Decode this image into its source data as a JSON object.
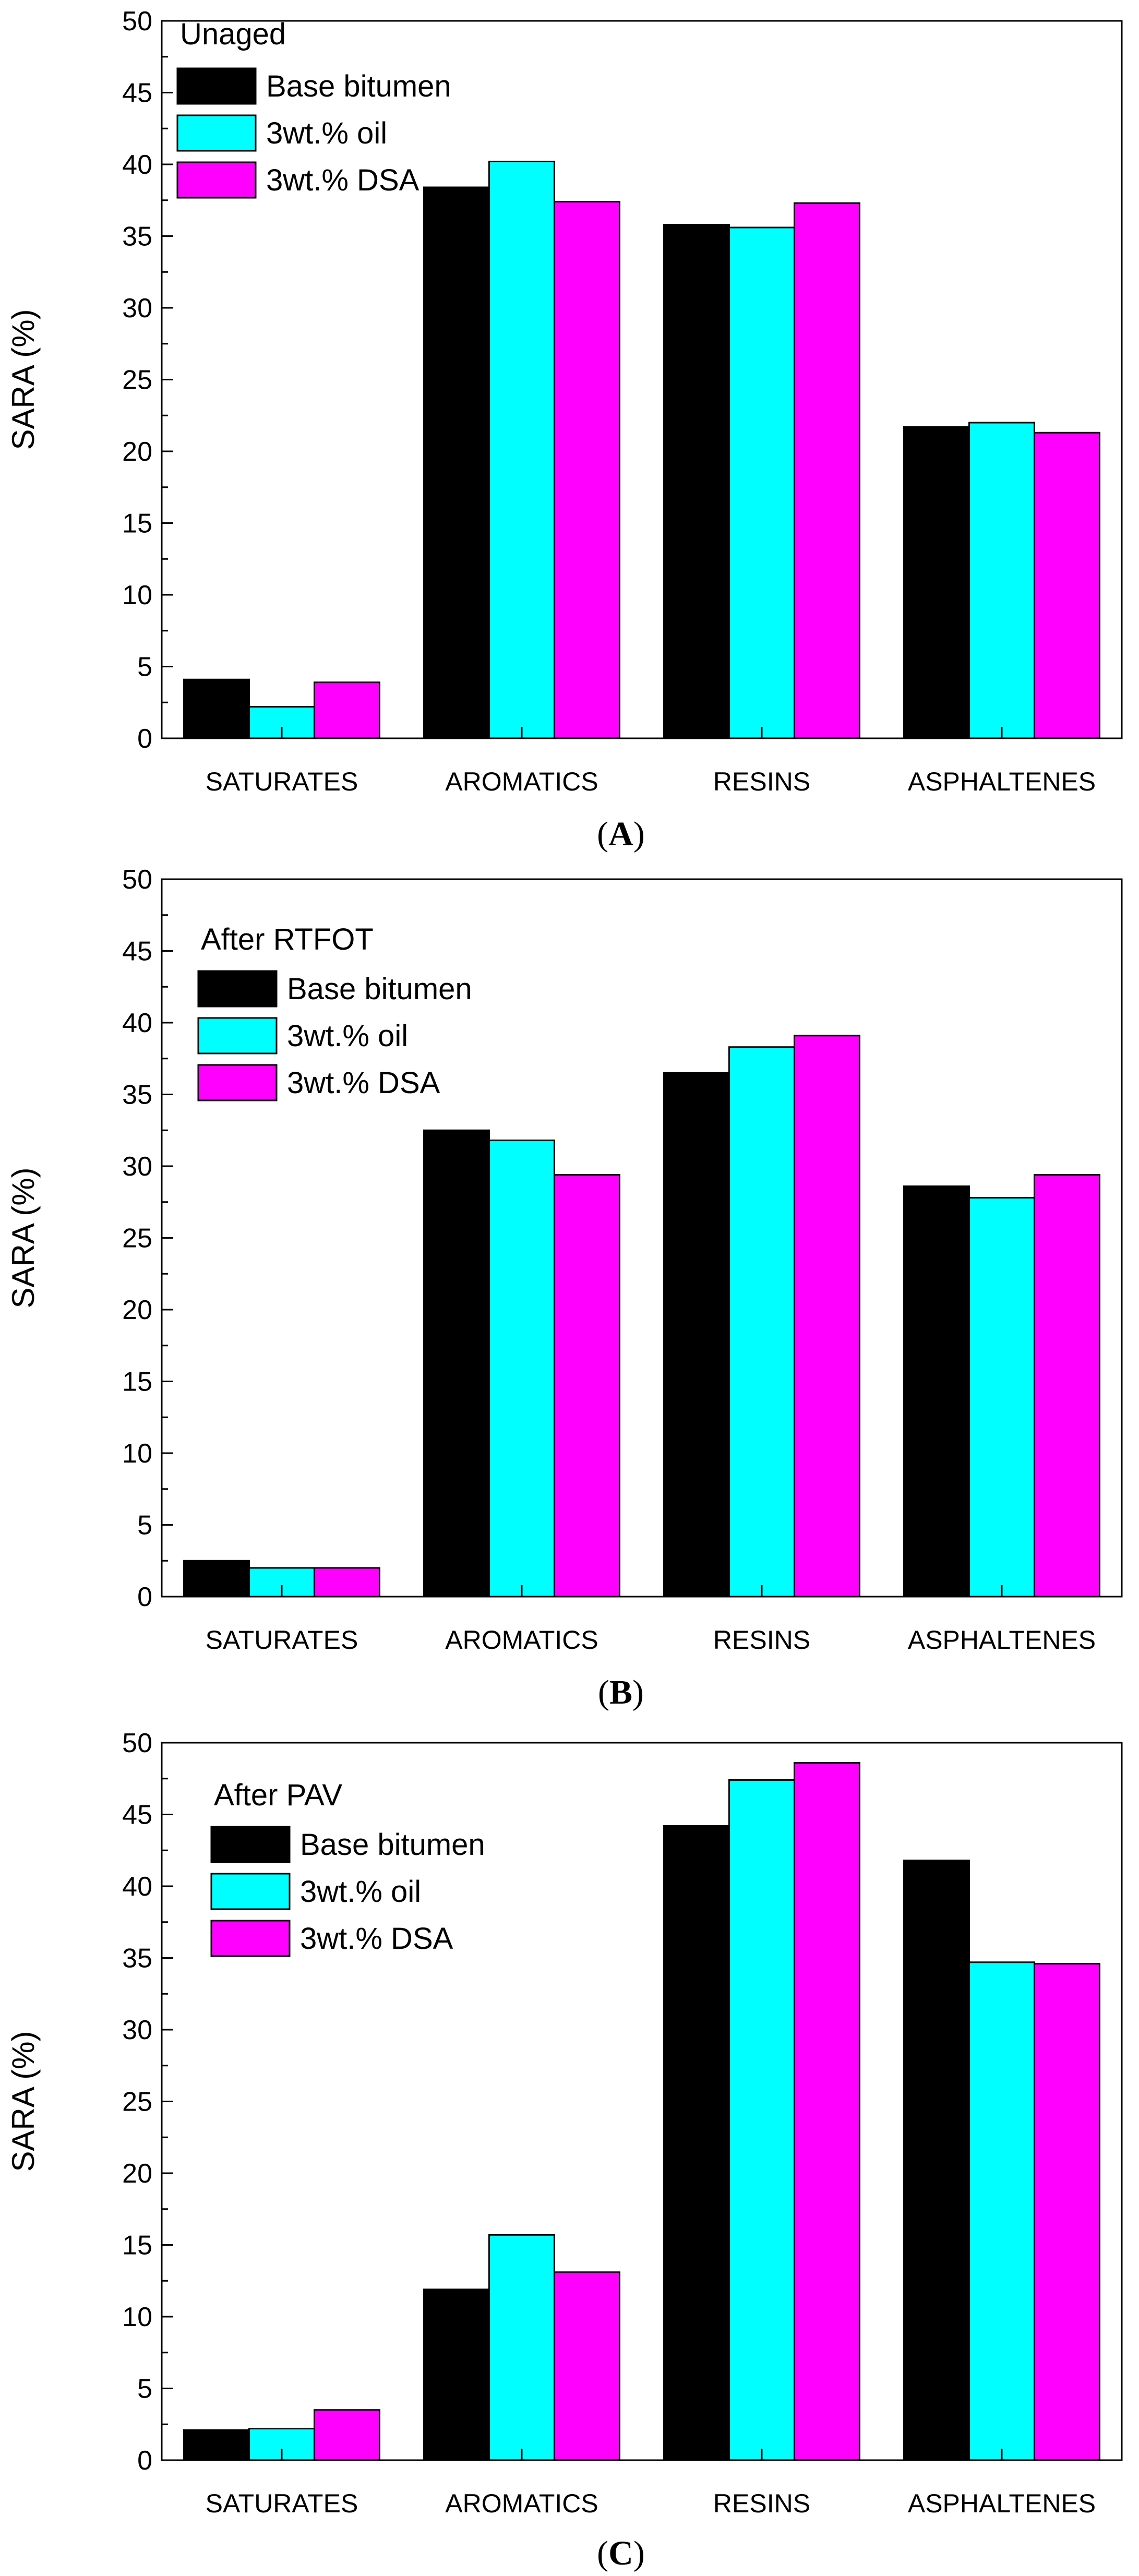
{
  "chart_data": [
    {
      "type": "bar",
      "panel_label": "A",
      "legend_title": "Unaged",
      "categories": [
        "SATURATES",
        "AROMATICS",
        "RESINS",
        "ASPHALTENES"
      ],
      "series": [
        {
          "name": "Base bitumen",
          "color": "#000000",
          "values": [
            4.1,
            38.4,
            35.8,
            21.7
          ]
        },
        {
          "name": "3wt.% oil",
          "color": "#00ffff",
          "values": [
            2.2,
            40.2,
            35.6,
            22.0
          ]
        },
        {
          "name": "3wt.% DSA",
          "color": "#ff00ff",
          "values": [
            3.9,
            37.4,
            37.3,
            21.3
          ]
        }
      ],
      "title": "",
      "xlabel": "",
      "ylabel": "SARA (%)",
      "ylim": [
        0,
        50
      ],
      "y_ticks": [
        0,
        5,
        10,
        15,
        20,
        25,
        30,
        35,
        40,
        45,
        50
      ],
      "legend_position": "top-left",
      "grid": false
    },
    {
      "type": "bar",
      "panel_label": "B",
      "legend_title": "After RTFOT",
      "categories": [
        "SATURATES",
        "AROMATICS",
        "RESINS",
        "ASPHALTENES"
      ],
      "series": [
        {
          "name": "Base bitumen",
          "color": "#000000",
          "values": [
            2.5,
            32.5,
            36.5,
            28.6
          ]
        },
        {
          "name": "3wt.% oil",
          "color": "#00ffff",
          "values": [
            2.0,
            31.8,
            38.3,
            27.8
          ]
        },
        {
          "name": "3wt.% DSA",
          "color": "#ff00ff",
          "values": [
            2.0,
            29.4,
            39.1,
            29.4
          ]
        }
      ],
      "title": "",
      "xlabel": "",
      "ylabel": "SARA (%)",
      "ylim": [
        0,
        50
      ],
      "y_ticks": [
        0,
        5,
        10,
        15,
        20,
        25,
        30,
        35,
        40,
        45,
        50
      ],
      "legend_position": "top-left",
      "grid": false
    },
    {
      "type": "bar",
      "panel_label": "C",
      "legend_title": "After PAV",
      "categories": [
        "SATURATES",
        "AROMATICS",
        "RESINS",
        "ASPHALTENES"
      ],
      "series": [
        {
          "name": "Base bitumen",
          "color": "#000000",
          "values": [
            2.1,
            11.9,
            44.2,
            41.8
          ]
        },
        {
          "name": "3wt.% oil",
          "color": "#00ffff",
          "values": [
            2.2,
            15.7,
            47.4,
            34.7
          ]
        },
        {
          "name": "3wt.% DSA",
          "color": "#ff00ff",
          "values": [
            3.5,
            13.1,
            48.6,
            34.6
          ]
        }
      ],
      "title": "",
      "xlabel": "",
      "ylabel": "SARA (%)",
      "ylim": [
        0,
        50
      ],
      "y_ticks": [
        0,
        5,
        10,
        15,
        20,
        25,
        30,
        35,
        40,
        45,
        50
      ],
      "legend_position": "top-left",
      "grid": false
    }
  ]
}
